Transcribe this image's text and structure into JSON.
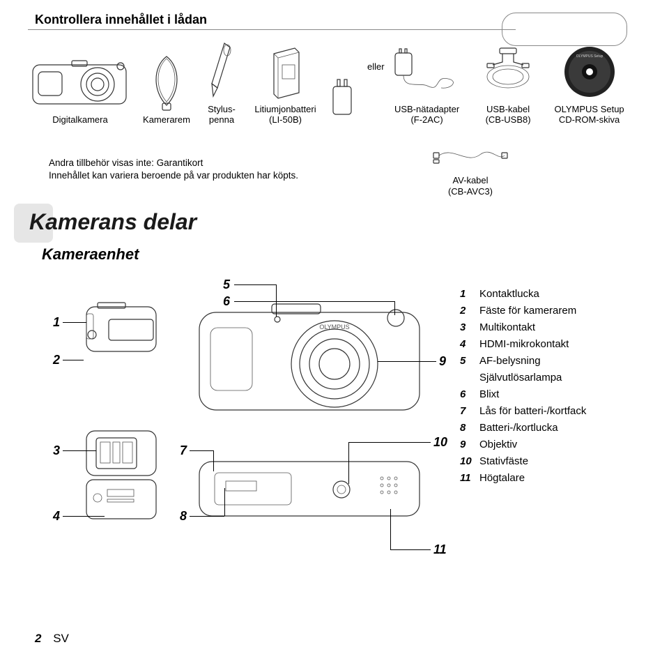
{
  "title": "Kontrollera innehållet i lådan",
  "or_word": "eller",
  "box_items": {
    "camera": {
      "label": "Digitalkamera"
    },
    "strap": {
      "label": "Kamerarem"
    },
    "stylus": {
      "label": "Stylus-penna"
    },
    "battery": {
      "label": "Litiumjonbatteri",
      "sublabel": "(LI-50B)"
    },
    "adapter": {
      "label": "USB-nätadapter",
      "sublabel": "(F-2AC)"
    },
    "usb": {
      "label": "USB-kabel",
      "sublabel": "(CB-USB8)"
    },
    "cd": {
      "label": "OLYMPUS Setup",
      "sublabel": "CD-ROM-skiva"
    }
  },
  "footnote_line1": "Andra tillbehör visas inte: Garantikort",
  "footnote_line2": "Innehållet kan variera beroende på var produkten har köpts.",
  "av_cable": {
    "label": "AV-kabel",
    "sublabel": "(CB-AVC3)"
  },
  "section_title": "Kamerans delar",
  "subsection_title": "Kameraenhet",
  "callout_numbers": {
    "n1": "1",
    "n2": "2",
    "n3": "3",
    "n4": "4",
    "n5": "5",
    "n6": "6",
    "n7": "7",
    "n8": "8",
    "n9": "9",
    "n10": "10",
    "n11": "11"
  },
  "parts": [
    {
      "n": "1",
      "t": "Kontaktlucka"
    },
    {
      "n": "2",
      "t": "Fäste för kamerarem"
    },
    {
      "n": "3",
      "t": "Multikontakt"
    },
    {
      "n": "4",
      "t": "HDMI-mikrokontakt"
    },
    {
      "n": "5",
      "t": "AF-belysning"
    },
    {
      "n": "",
      "t": "Självutlösarlampa",
      "indent": true
    },
    {
      "n": "6",
      "t": "Blixt"
    },
    {
      "n": "7",
      "t": "Lås för batteri-/kortfack"
    },
    {
      "n": "8",
      "t": "Batteri-/kortlucka"
    },
    {
      "n": "9",
      "t": "Objektiv"
    },
    {
      "n": "10",
      "t": "Stativfäste"
    },
    {
      "n": "11",
      "t": "Högtalare"
    }
  ],
  "footer": {
    "page": "2",
    "lang": "SV"
  },
  "colors": {
    "text": "#000000",
    "bg": "#ffffff",
    "rule": "#888888",
    "ghost": "#e6e6e6",
    "stroke": "#333333"
  },
  "fontsizes": {
    "title": 18,
    "section": 32,
    "subsection": 22,
    "body": 15,
    "small": 13
  }
}
